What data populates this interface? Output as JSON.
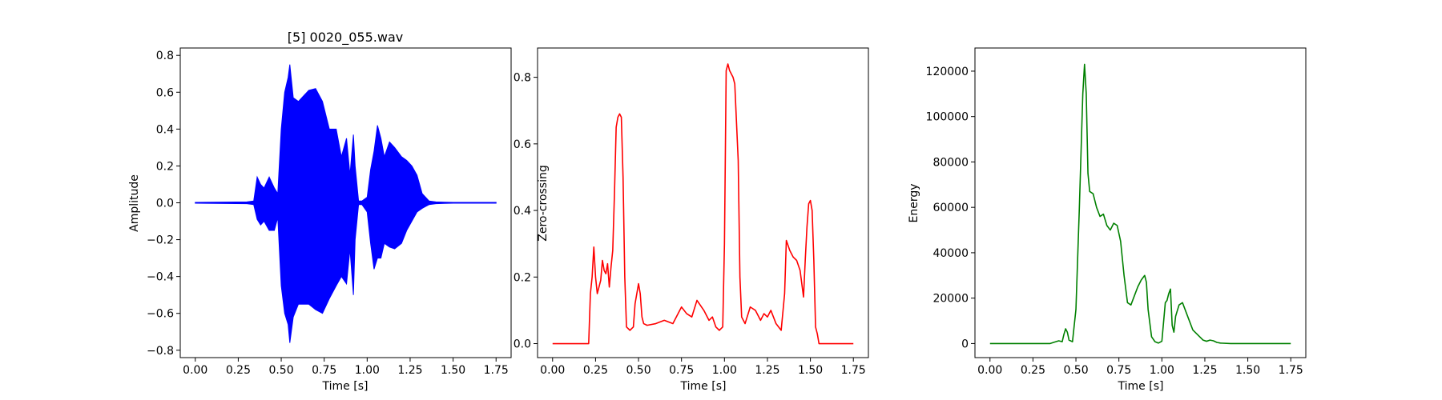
{
  "chart_data": [
    {
      "type": "line",
      "title": "[5] 0020_055.wav",
      "xlabel": "Time [s]",
      "ylabel": "Amplitude",
      "xlim": [
        -0.0875,
        1.8375
      ],
      "ylim": [
        -0.84,
        0.84
      ],
      "xticks": [
        "0.00",
        "0.25",
        "0.50",
        "0.75",
        "1.00",
        "1.25",
        "1.50",
        "1.75"
      ],
      "yticks": [
        "−0.8",
        "−0.6",
        "−0.4",
        "−0.2",
        "0.0",
        "0.2",
        "0.4",
        "0.6",
        "0.8"
      ],
      "grid": false,
      "series": [
        {
          "color": "#0000ff",
          "style": "waveform-envelope",
          "x": [
            0.0,
            0.3,
            0.34,
            0.36,
            0.38,
            0.4,
            0.43,
            0.46,
            0.48,
            0.5,
            0.52,
            0.54,
            0.55,
            0.57,
            0.6,
            0.63,
            0.66,
            0.7,
            0.74,
            0.78,
            0.82,
            0.85,
            0.88,
            0.9,
            0.92,
            0.93,
            0.95,
            0.97,
            1.0,
            1.02,
            1.04,
            1.06,
            1.08,
            1.1,
            1.13,
            1.16,
            1.2,
            1.23,
            1.26,
            1.29,
            1.32,
            1.34,
            1.36,
            1.4,
            1.45,
            1.5,
            1.55,
            1.75
          ],
          "upper": [
            0.002,
            0.005,
            0.01,
            0.14,
            0.1,
            0.08,
            0.14,
            0.08,
            0.05,
            0.4,
            0.6,
            0.68,
            0.75,
            0.57,
            0.55,
            0.58,
            0.61,
            0.62,
            0.55,
            0.4,
            0.4,
            0.25,
            0.35,
            0.15,
            0.37,
            0.2,
            0.01,
            0.01,
            0.03,
            0.18,
            0.28,
            0.42,
            0.35,
            0.25,
            0.33,
            0.3,
            0.25,
            0.23,
            0.2,
            0.15,
            0.05,
            0.03,
            0.01,
            0.005,
            0.003,
            0.002,
            0.002,
            0.002
          ],
          "lower": [
            -0.002,
            -0.005,
            -0.01,
            -0.09,
            -0.12,
            -0.1,
            -0.15,
            -0.15,
            -0.08,
            -0.45,
            -0.6,
            -0.66,
            -0.76,
            -0.62,
            -0.55,
            -0.55,
            -0.55,
            -0.58,
            -0.6,
            -0.52,
            -0.45,
            -0.4,
            -0.44,
            -0.25,
            -0.5,
            -0.2,
            -0.01,
            -0.01,
            -0.05,
            -0.22,
            -0.36,
            -0.3,
            -0.3,
            -0.22,
            -0.24,
            -0.25,
            -0.22,
            -0.15,
            -0.1,
            -0.05,
            -0.03,
            -0.02,
            -0.01,
            -0.005,
            -0.003,
            -0.002,
            -0.002,
            -0.002
          ]
        }
      ]
    },
    {
      "type": "line",
      "xlabel": "Time [s]",
      "ylabel": "Zero-crossing",
      "xlim": [
        -0.0875,
        1.8375
      ],
      "ylim": [
        -0.042,
        0.888
      ],
      "xticks": [
        "0.00",
        "0.25",
        "0.50",
        "0.75",
        "1.00",
        "1.25",
        "1.50",
        "1.75"
      ],
      "yticks": [
        "0.0",
        "0.2",
        "0.4",
        "0.6",
        "0.8"
      ],
      "grid": false,
      "series": [
        {
          "color": "#ff0000",
          "x": [
            0.0,
            0.21,
            0.22,
            0.23,
            0.24,
            0.25,
            0.26,
            0.28,
            0.29,
            0.3,
            0.31,
            0.32,
            0.33,
            0.34,
            0.35,
            0.36,
            0.37,
            0.38,
            0.39,
            0.4,
            0.41,
            0.42,
            0.43,
            0.45,
            0.47,
            0.48,
            0.5,
            0.51,
            0.52,
            0.53,
            0.55,
            0.6,
            0.65,
            0.7,
            0.75,
            0.78,
            0.81,
            0.84,
            0.88,
            0.91,
            0.93,
            0.95,
            0.97,
            0.99,
            1.0,
            1.01,
            1.02,
            1.03,
            1.05,
            1.06,
            1.08,
            1.09,
            1.1,
            1.12,
            1.15,
            1.18,
            1.21,
            1.23,
            1.25,
            1.27,
            1.3,
            1.33,
            1.35,
            1.36,
            1.38,
            1.4,
            1.42,
            1.44,
            1.46,
            1.47,
            1.48,
            1.49,
            1.5,
            1.51,
            1.52,
            1.53,
            1.54,
            1.55,
            1.75
          ],
          "y": [
            0.0,
            0.0,
            0.15,
            0.2,
            0.29,
            0.2,
            0.15,
            0.19,
            0.25,
            0.22,
            0.21,
            0.24,
            0.17,
            0.23,
            0.28,
            0.45,
            0.65,
            0.68,
            0.69,
            0.68,
            0.5,
            0.2,
            0.05,
            0.04,
            0.05,
            0.12,
            0.18,
            0.15,
            0.08,
            0.06,
            0.055,
            0.06,
            0.07,
            0.06,
            0.11,
            0.09,
            0.08,
            0.13,
            0.1,
            0.07,
            0.08,
            0.05,
            0.04,
            0.05,
            0.3,
            0.82,
            0.84,
            0.82,
            0.8,
            0.78,
            0.55,
            0.2,
            0.08,
            0.06,
            0.11,
            0.1,
            0.07,
            0.09,
            0.08,
            0.1,
            0.06,
            0.04,
            0.15,
            0.31,
            0.28,
            0.26,
            0.25,
            0.22,
            0.14,
            0.25,
            0.35,
            0.42,
            0.43,
            0.4,
            0.25,
            0.05,
            0.03,
            0.0,
            0.0
          ]
        }
      ]
    },
    {
      "type": "line",
      "xlabel": "Time [s]",
      "ylabel": "Energy",
      "xlim": [
        -0.0875,
        1.8375
      ],
      "ylim": [
        -6200,
        130200
      ],
      "xticks": [
        "0.00",
        "0.25",
        "0.50",
        "0.75",
        "1.00",
        "1.25",
        "1.50",
        "1.75"
      ],
      "yticks": [
        "0",
        "20000",
        "40000",
        "60000",
        "80000",
        "100000",
        "120000"
      ],
      "grid": false,
      "series": [
        {
          "color": "#008000",
          "x": [
            0.0,
            0.35,
            0.37,
            0.4,
            0.42,
            0.43,
            0.44,
            0.45,
            0.46,
            0.48,
            0.5,
            0.52,
            0.54,
            0.55,
            0.56,
            0.57,
            0.58,
            0.6,
            0.62,
            0.64,
            0.66,
            0.68,
            0.7,
            0.72,
            0.74,
            0.76,
            0.78,
            0.8,
            0.82,
            0.84,
            0.86,
            0.88,
            0.9,
            0.91,
            0.92,
            0.94,
            0.96,
            0.98,
            1.0,
            1.02,
            1.03,
            1.04,
            1.05,
            1.06,
            1.07,
            1.08,
            1.1,
            1.12,
            1.14,
            1.16,
            1.18,
            1.2,
            1.22,
            1.24,
            1.26,
            1.28,
            1.3,
            1.32,
            1.34,
            1.4,
            1.5,
            1.75
          ],
          "y": [
            0,
            0,
            500,
            1200,
            800,
            4000,
            6500,
            5000,
            1500,
            800,
            15000,
            60000,
            110000,
            123000,
            110000,
            75000,
            67000,
            66000,
            60000,
            56000,
            57000,
            52000,
            50000,
            53000,
            52000,
            45000,
            30000,
            18000,
            17000,
            21000,
            25000,
            28000,
            30000,
            27000,
            15000,
            3000,
            800,
            200,
            1000,
            18000,
            19000,
            22000,
            24000,
            8000,
            5000,
            12000,
            17000,
            18000,
            14000,
            10000,
            6000,
            4500,
            3000,
            1500,
            1000,
            1500,
            1200,
            500,
            200,
            0,
            0,
            0
          ]
        }
      ]
    }
  ]
}
